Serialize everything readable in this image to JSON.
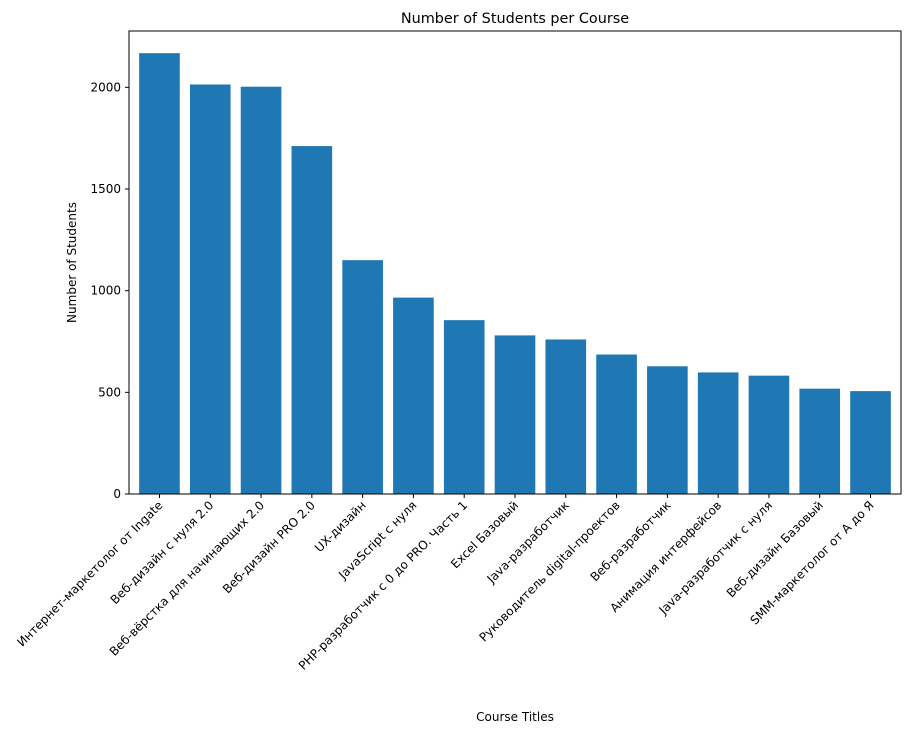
{
  "chart_data": {
    "type": "bar",
    "title": "Number of Students per Course",
    "xlabel": "Course Titles",
    "ylabel": "Number of Students",
    "categories": [
      "Интернет-маркетолог от Ingate",
      "Веб-дизайн с нуля 2.0",
      "Веб-вёрстка для начинающих 2.0",
      "Веб-дизайн PRO 2.0",
      "UX-дизайн",
      "JavaScript с нуля",
      "PHP-разработчик с 0 до PRO. Часть 1",
      "Excel Базовый",
      "Java-разработчик",
      "Руководитель digital-проектов",
      "Веб-разработчик",
      "Анимация интерфейсов",
      "Java-разработчик с нуля",
      "Веб-дизайн Базовый",
      "SMM-маркетолог от А до Я"
    ],
    "values": [
      2168,
      2014,
      2003,
      1711,
      1150,
      966,
      855,
      780,
      760,
      686,
      628,
      598,
      582,
      518,
      506
    ],
    "ylim": [
      0,
      2277
    ],
    "yticks": [
      0,
      500,
      1000,
      1500,
      2000
    ],
    "color": "#1f77b4",
    "grid": false,
    "legend": "none"
  }
}
